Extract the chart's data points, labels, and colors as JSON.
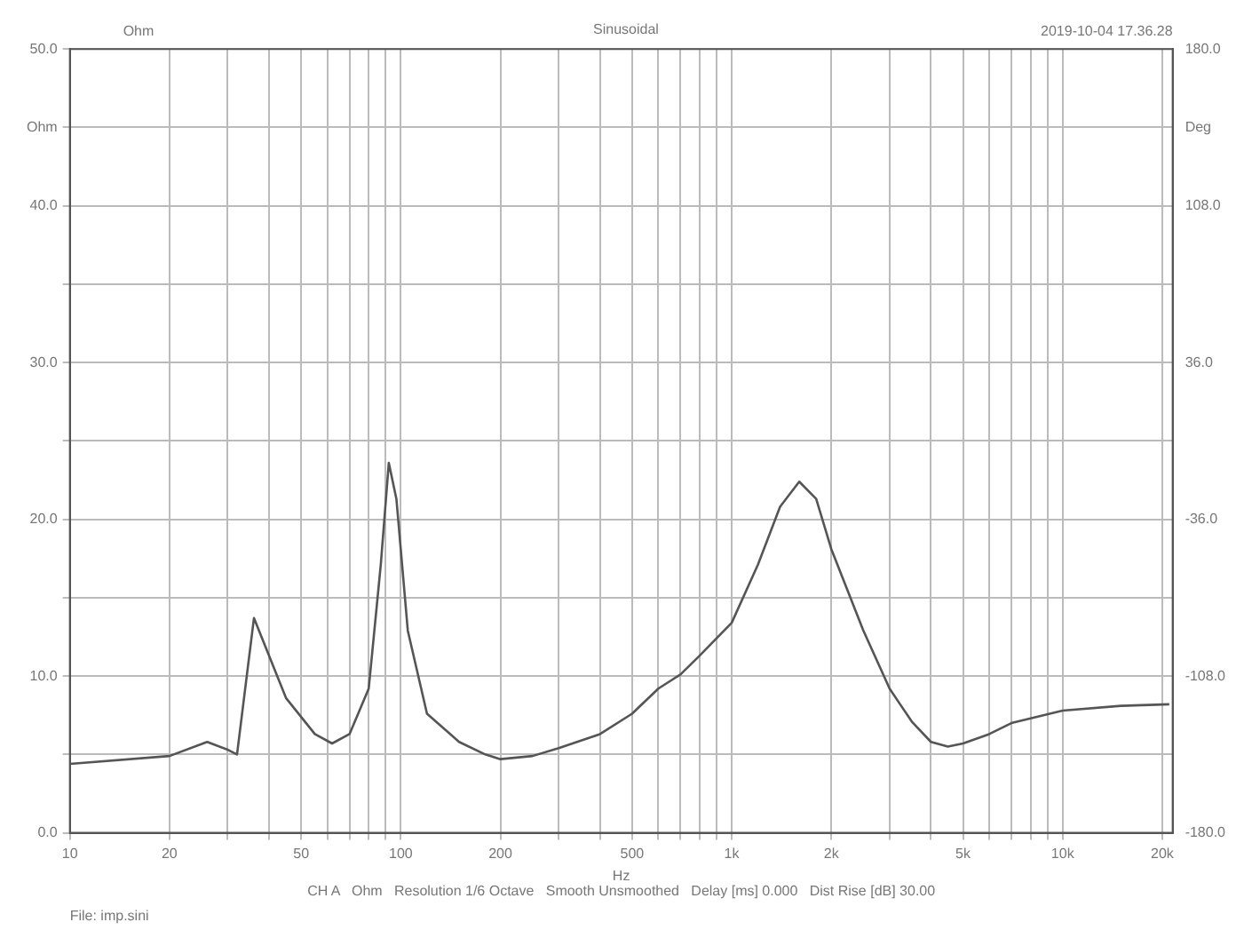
{
  "chart_data": {
    "type": "line",
    "title": "Sinusoidal",
    "xlabel": "Hz",
    "annotations": [
      "Ohm",
      "2019-10-04 17.36.28",
      "CH A   Ohm   Resolution 1/6 Octave   Smooth Unsmoothed   Delay [ms] 0.000   Dist Rise [dB] 30.00",
      "File: imp.sini"
    ],
    "x": [
      10,
      20,
      26,
      30,
      32,
      36,
      45,
      55,
      62,
      70,
      80,
      87,
      92,
      97,
      105,
      120,
      150,
      180,
      200,
      250,
      300,
      400,
      500,
      600,
      700,
      800,
      1000,
      1200,
      1400,
      1600,
      1800,
      2000,
      2500,
      3000,
      3500,
      4000,
      4500,
      5000,
      6000,
      7000,
      8000,
      10000,
      15000,
      21000
    ],
    "series": [
      {
        "color": "#555555",
        "values": [
          4.4,
          4.9,
          5.8,
          5.3,
          5.0,
          13.7,
          8.6,
          6.3,
          5.7,
          6.3,
          9.2,
          17.1,
          23.6,
          21.3,
          12.9,
          7.6,
          5.8,
          5.0,
          4.7,
          4.9,
          5.4,
          6.3,
          7.6,
          9.2,
          10.1,
          11.3,
          13.4,
          17.1,
          20.8,
          22.4,
          21.3,
          18.1,
          12.9,
          9.2,
          7.1,
          5.8,
          5.5,
          5.7,
          6.3,
          7.0,
          7.3,
          7.8,
          8.1,
          8.2
        ]
      }
    ],
    "log": "x",
    "xlim": [
      10,
      21500
    ],
    "xticks": [
      10,
      20,
      {
        "value": 30,
        "label": null
      },
      {
        "value": 40,
        "label": null
      },
      50,
      {
        "value": 60,
        "label": null
      },
      {
        "value": 70,
        "label": null
      },
      {
        "value": 80,
        "label": null
      },
      {
        "value": 90,
        "label": null
      },
      100,
      200,
      {
        "value": 300,
        "label": null
      },
      {
        "value": 400,
        "label": null
      },
      500,
      {
        "value": 600,
        "label": null
      },
      {
        "value": 700,
        "label": null
      },
      {
        "value": 800,
        "label": null
      },
      {
        "value": 900,
        "label": null
      },
      {
        "value": 1000,
        "label": "1k"
      },
      {
        "value": 2000,
        "label": "2k"
      },
      {
        "value": 3000,
        "label": null
      },
      {
        "value": 4000,
        "label": null
      },
      {
        "value": 5000,
        "label": "5k"
      },
      {
        "value": 6000,
        "label": null
      },
      {
        "value": 7000,
        "label": null
      },
      {
        "value": 8000,
        "label": null
      },
      {
        "value": 9000,
        "label": null
      },
      {
        "value": 10000,
        "label": "10k"
      },
      {
        "value": 20000,
        "label": "20k"
      }
    ],
    "ylim": [
      0,
      50
    ],
    "yticks": [
      {
        "value": 0,
        "label": "0.0"
      },
      {
        "value": 5,
        "label": null
      },
      {
        "value": 10,
        "label": "10.0"
      },
      {
        "value": 15,
        "label": null
      },
      {
        "value": 20,
        "label": "20.0"
      },
      {
        "value": 25,
        "label": null
      },
      {
        "value": 30,
        "label": "30.0"
      },
      {
        "value": 35,
        "label": null
      },
      {
        "value": 40,
        "label": "40.0"
      },
      {
        "value": 45,
        "label": "Ohm"
      },
      {
        "value": 50,
        "label": "50.0"
      }
    ],
    "y2lim": [
      -180,
      180
    ],
    "y2ticks": [
      {
        "value": -180,
        "label": "-180.0"
      },
      {
        "value": -108,
        "label": "-108.0"
      },
      {
        "value": -36,
        "label": "-36.0"
      },
      {
        "value": 36,
        "label": "36.0"
      },
      {
        "value": 108,
        "label": "108.0"
      },
      {
        "value": 144,
        "label": "Deg"
      },
      {
        "value": 180,
        "label": "180.0"
      }
    ],
    "grid": true,
    "legend": false,
    "marker": "none",
    "line_style": "solid"
  }
}
